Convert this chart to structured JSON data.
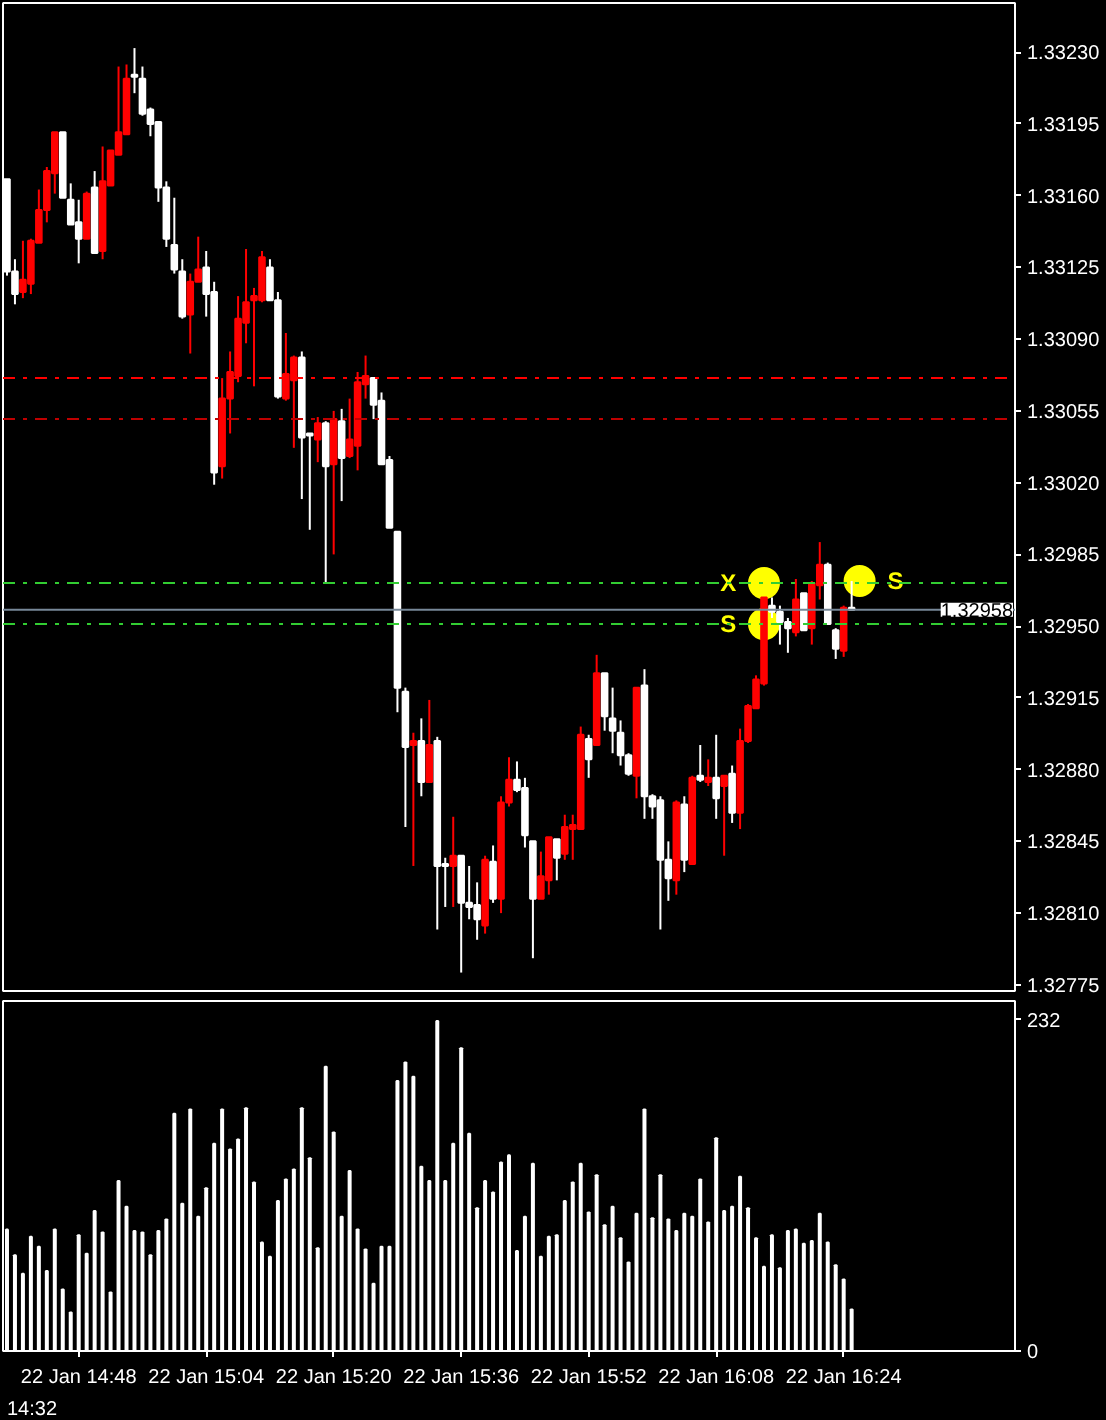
{
  "chart_data": [
    {
      "type": "candlestick",
      "tick_labels": "y",
      "grid": false,
      "categories": [
        null,
        null,
        null,
        null,
        null,
        null,
        null,
        null,
        null,
        null,
        null,
        null,
        null,
        null,
        null,
        null,
        null,
        null,
        null,
        null,
        null,
        null,
        null,
        null,
        null,
        null,
        null,
        null,
        null,
        null,
        null,
        null,
        null,
        null,
        null,
        null,
        null,
        null,
        null,
        null,
        null,
        null,
        null,
        null,
        null,
        null,
        null,
        null,
        null,
        null,
        null,
        null,
        null,
        null,
        null,
        null,
        null,
        null,
        null,
        null,
        null,
        null,
        null,
        null,
        null,
        null,
        null,
        null,
        null,
        null,
        null,
        null,
        null,
        null,
        null,
        null,
        null,
        null,
        null,
        null,
        null,
        null,
        null,
        null,
        null,
        null,
        null,
        null,
        null,
        null,
        null,
        null,
        null,
        null,
        null,
        null,
        null,
        null,
        null,
        null,
        null,
        null,
        null,
        null,
        null,
        null,
        null,
        null,
        null,
        null,
        null,
        null,
        null,
        null,
        null,
        null,
        null,
        null,
        null,
        null,
        null,
        null,
        null,
        null,
        null,
        null,
        null
      ],
      "colors": [
        "#ffffff",
        "#ffffff",
        "#ff0000",
        "#ff0000",
        "#ff0000",
        "#ff0000",
        "#ff0000",
        "#ffffff",
        "#ffffff",
        "#ffffff",
        "#ff0000",
        "#ffffff",
        "#ff0000",
        "#ff0000",
        "#ff0000",
        "#ff0000",
        "#ffffff",
        "#ffffff",
        "#ffffff",
        "#ffffff",
        "#ffffff",
        "#ffffff",
        "#ffffff",
        "#ff0000",
        "#ff0000",
        "#ffffff",
        "#ffffff",
        "#ff0000",
        "#ff0000",
        "#ff0000",
        "#ff0000",
        "#ff0000",
        "#ff0000",
        "#ffffff",
        "#ffffff",
        "#ff0000",
        "#ff0000",
        "#ffffff",
        "#ffffff",
        "#ff0000",
        "#ffffff",
        "#ff0000",
        "#ffffff",
        "#ff0000",
        "#ff0000",
        "#ff0000",
        "#ffffff",
        "#ffffff",
        "#ffffff",
        "#ffffff",
        "#ffffff",
        "#ff0000",
        "#ffffff",
        "#ff0000",
        "#ffffff",
        "#ffffff",
        "#ff0000",
        "#ffffff",
        "#ffffff",
        "#ffffff",
        "#ff0000",
        "#ffffff",
        "#ff0000",
        "#ff0000",
        "#ffffff",
        "#ffffff",
        "#ffffff",
        "#ff0000",
        "#ff0000",
        "#ffffff",
        "#ff0000",
        "#ff0000",
        "#ff0000",
        "#ffffff",
        "#ff0000",
        "#ffffff",
        "#ffffff",
        "#ffffff",
        "#ffffff",
        "#ff0000",
        "#ffffff",
        "#ffffff",
        "#ffffff",
        "#ffffff",
        "#ff0000",
        "#ffffff",
        "#ff0000",
        "#ffffff",
        "#ff0000",
        "#ffffff",
        "#ff0000",
        "#ffffff",
        "#ff0000",
        "#ff0000",
        "#ff0000",
        "#ff0000",
        "#ffffff",
        "#ffffff",
        "#ffffff",
        "#ff0000",
        "#ffffff",
        "#ff0000",
        "#ff0000",
        "#ffffff",
        "#ffffff",
        "#ff0000",
        "#ffffff",
        null,
        null,
        null,
        null,
        null,
        null,
        null,
        null,
        null,
        null,
        null,
        null,
        null,
        null,
        null,
        null,
        null,
        null,
        null,
        null
      ],
      "ohlc": [
        [
          1.33168,
          1.33168,
          1.33121,
          1.33123
        ],
        [
          1.33123,
          1.33129,
          1.33107,
          1.33112
        ],
        [
          1.33113,
          1.33138,
          1.3311,
          1.33119
        ],
        [
          1.33117,
          1.33139,
          1.33112,
          1.33138
        ],
        [
          1.33137,
          1.33163,
          1.33137,
          1.33153
        ],
        [
          1.33153,
          1.33174,
          1.33147,
          1.33172
        ],
        [
          1.33171,
          1.33191,
          1.33161,
          1.33191
        ],
        [
          1.33191,
          1.33191,
          1.33159,
          1.33159
        ],
        [
          1.33158,
          1.33166,
          1.33146,
          1.33146
        ],
        [
          1.33147,
          1.33158,
          1.33127,
          1.33139
        ],
        [
          1.33139,
          1.33162,
          1.33139,
          1.33161
        ],
        [
          1.33164,
          1.33172,
          1.33132,
          1.33132
        ],
        [
          1.33133,
          1.33184,
          1.33129,
          1.33167
        ],
        [
          1.33165,
          1.33182,
          1.33165,
          1.33182
        ],
        [
          1.3318,
          1.33223,
          1.3318,
          1.33191
        ],
        [
          1.3319,
          1.33224,
          1.3319,
          1.33217
        ],
        [
          1.33219,
          1.33232,
          1.3321,
          1.33218
        ],
        [
          1.33217,
          1.33223,
          1.33199,
          1.332
        ],
        [
          1.33202,
          1.33203,
          1.33189,
          1.33195
        ],
        [
          1.33196,
          1.33196,
          1.33157,
          1.33164
        ],
        [
          1.33164,
          1.33167,
          1.33135,
          1.33139
        ],
        [
          1.33136,
          1.33159,
          1.33122,
          1.33124
        ],
        [
          1.33123,
          1.33129,
          1.331,
          1.33101
        ],
        [
          1.33102,
          1.33122,
          1.33083,
          1.33118
        ],
        [
          1.33118,
          1.3314,
          1.33118,
          1.33124
        ],
        [
          1.33125,
          1.33133,
          1.33101,
          1.33112
        ],
        [
          1.33113,
          1.33118,
          1.33019,
          1.33025
        ],
        [
          1.33028,
          1.33071,
          1.33022,
          1.33061
        ],
        [
          1.33061,
          1.33084,
          1.33044,
          1.33074
        ],
        [
          1.33072,
          1.33111,
          1.33069,
          1.331
        ],
        [
          1.33098,
          1.33134,
          1.33088,
          1.33108
        ],
        [
          1.33109,
          1.33115,
          1.33067,
          1.33111
        ],
        [
          1.33109,
          1.33133,
          1.33108,
          1.3313
        ],
        [
          1.33125,
          1.33129,
          1.33109,
          1.33109
        ],
        [
          1.33109,
          1.33113,
          1.33061,
          1.33062
        ],
        [
          1.33061,
          1.33093,
          1.3306,
          1.33073
        ],
        [
          1.3307,
          1.33082,
          1.33037,
          1.33081
        ],
        [
          1.33081,
          1.33084,
          1.33012,
          1.33042
        ],
        [
          1.33044,
          1.33044,
          1.32997,
          1.33043
        ],
        [
          1.33041,
          1.33052,
          1.3303,
          1.33049
        ],
        [
          1.33049,
          1.3305,
          1.32971,
          1.33028
        ],
        [
          1.33029,
          1.33055,
          1.32985,
          1.33051
        ],
        [
          1.3305,
          1.33056,
          1.33011,
          1.33032
        ],
        [
          1.33033,
          1.33061,
          1.33032,
          1.33041
        ],
        [
          1.33038,
          1.33074,
          1.33026,
          1.33069
        ],
        [
          1.33068,
          1.33082,
          1.33061,
          1.33072
        ],
        [
          1.33071,
          1.33071,
          1.33051,
          1.33058
        ],
        [
          1.3306,
          1.33064,
          1.33029,
          1.33029
        ],
        [
          1.33031,
          1.33033,
          1.32998,
          1.32998
        ],
        [
          1.32996,
          1.32996,
          1.32908,
          1.3292
        ],
        [
          1.32918,
          1.3292,
          1.32852,
          1.32891
        ],
        [
          1.32892,
          1.32898,
          1.32833,
          1.32894
        ],
        [
          1.32894,
          1.32905,
          1.32867,
          1.32874
        ],
        [
          1.32874,
          1.32914,
          1.32874,
          1.32892
        ],
        [
          1.32894,
          1.32896,
          1.32802,
          1.32833
        ],
        [
          1.32834,
          1.32837,
          1.32813,
          1.32833
        ],
        [
          1.32833,
          1.32857,
          1.32813,
          1.32838
        ],
        [
          1.32838,
          1.32838,
          1.32781,
          1.32815
        ],
        [
          1.32815,
          1.32833,
          1.32807,
          1.32813
        ],
        [
          1.32814,
          1.32825,
          1.32797,
          1.32807
        ],
        [
          1.32804,
          1.32838,
          1.328,
          1.32836
        ],
        [
          1.32835,
          1.32843,
          1.32815,
          1.32817
        ],
        [
          1.32817,
          1.32867,
          1.3281,
          1.32864
        ],
        [
          1.32864,
          1.32886,
          1.32862,
          1.32875
        ],
        [
          1.32875,
          1.32884,
          1.32869,
          1.3287
        ],
        [
          1.32871,
          1.32876,
          1.32842,
          1.32848
        ],
        [
          1.32845,
          1.32845,
          1.32788,
          1.32817
        ],
        [
          1.32817,
          1.3284,
          1.32817,
          1.32828
        ],
        [
          1.32826,
          1.32847,
          1.32819,
          1.32847
        ],
        [
          1.32846,
          1.32846,
          1.32826,
          1.32837
        ],
        [
          1.32839,
          1.32858,
          1.32836,
          1.32852
        ],
        [
          1.32851,
          1.32858,
          1.32836,
          1.32853
        ],
        [
          1.32851,
          1.32901,
          1.32851,
          1.32897
        ],
        [
          1.32895,
          1.32897,
          1.32876,
          1.32885
        ],
        [
          1.32892,
          1.32936,
          1.32892,
          1.32927
        ],
        [
          1.32927,
          1.32927,
          1.32899,
          1.32906
        ],
        [
          1.32905,
          1.3292,
          1.32888,
          1.32899
        ],
        [
          1.32898,
          1.32904,
          1.32882,
          1.32887
        ],
        [
          1.32887,
          1.32888,
          1.32877,
          1.32878
        ],
        [
          1.32877,
          1.3292,
          1.32866,
          1.3292
        ],
        [
          1.32921,
          1.32929,
          1.32856,
          1.32867
        ],
        [
          1.32867,
          1.32868,
          1.32856,
          1.32862
        ],
        [
          1.32865,
          1.32867,
          1.32802,
          1.32836
        ],
        [
          1.32836,
          1.32845,
          1.32816,
          1.32827
        ],
        [
          1.32826,
          1.32865,
          1.32819,
          1.32864
        ],
        [
          1.32863,
          1.32867,
          1.3283,
          1.32836
        ],
        [
          1.32834,
          1.32877,
          1.32834,
          1.32876
        ],
        [
          1.32877,
          1.32892,
          1.32874,
          1.32875
        ],
        [
          1.32874,
          1.32885,
          1.32872,
          1.32876
        ],
        [
          1.32876,
          1.32897,
          1.32856,
          1.32866
        ],
        [
          1.32872,
          1.32877,
          1.32838,
          1.32877
        ],
        [
          1.32878,
          1.32882,
          1.32854,
          1.32859
        ],
        [
          1.32859,
          1.329,
          1.32851,
          1.32894
        ],
        [
          1.32894,
          1.32912,
          1.32893,
          1.32911
        ],
        [
          1.3291,
          1.32926,
          1.3291,
          1.32924
        ],
        [
          1.32922,
          1.32964,
          1.32921,
          1.32964
        ],
        [
          1.3296,
          1.32964,
          1.32954,
          1.32957
        ],
        [
          1.32957,
          1.3296,
          1.32941,
          1.32952
        ],
        [
          1.32952,
          1.32954,
          1.32937,
          1.32949
        ],
        [
          1.32947,
          1.32973,
          1.32945,
          1.32963
        ],
        [
          1.32966,
          1.32966,
          1.32948,
          1.32948
        ],
        [
          1.32949,
          1.32972,
          1.32941,
          1.32971
        ],
        [
          1.3297,
          1.32991,
          1.32963,
          1.3298
        ],
        [
          1.3298,
          1.32981,
          1.32951,
          1.32951
        ],
        [
          1.32948,
          1.32949,
          1.32934,
          1.32939
        ],
        [
          1.32938,
          1.3296,
          1.32935,
          1.32959
        ],
        [
          1.32959,
          1.32972,
          1.32958,
          1.32958
        ],
        null,
        null,
        null,
        null,
        null,
        null,
        null,
        null,
        null,
        null,
        null,
        null,
        null,
        null,
        null,
        null,
        null,
        null,
        null,
        null
      ],
      "series": [
        {
          "name": "X",
          "type": "scatter",
          "color": "#ffff00",
          "values": [
            null,
            null,
            null,
            null,
            null,
            null,
            null,
            null,
            null,
            null,
            null,
            null,
            null,
            null,
            null,
            null,
            null,
            null,
            null,
            null,
            null,
            null,
            null,
            null,
            null,
            null,
            null,
            null,
            null,
            null,
            null,
            null,
            null,
            null,
            null,
            null,
            null,
            null,
            null,
            null,
            null,
            null,
            null,
            null,
            null,
            null,
            null,
            null,
            null,
            null,
            null,
            null,
            null,
            null,
            null,
            null,
            null,
            null,
            null,
            null,
            null,
            null,
            null,
            null,
            null,
            null,
            null,
            null,
            null,
            null,
            null,
            null,
            null,
            null,
            null,
            null,
            null,
            null,
            null,
            null,
            null,
            null,
            null,
            null,
            null,
            null,
            null,
            null,
            null,
            null,
            null,
            null,
            null,
            null,
            null,
            1.32971,
            null,
            null,
            null,
            null,
            null,
            null,
            null,
            null,
            null,
            null,
            null,
            null,
            null,
            null,
            null,
            null,
            null,
            null,
            null,
            null,
            null,
            null,
            null,
            null,
            null,
            null,
            null,
            null,
            null,
            null,
            null
          ]
        },
        {
          "name": "S",
          "type": "scatter",
          "color": "#ffff00",
          "values": [
            null,
            null,
            null,
            null,
            null,
            null,
            null,
            null,
            null,
            null,
            null,
            null,
            null,
            null,
            null,
            null,
            null,
            null,
            null,
            null,
            null,
            null,
            null,
            null,
            null,
            null,
            null,
            null,
            null,
            null,
            null,
            null,
            null,
            null,
            null,
            null,
            null,
            null,
            null,
            null,
            null,
            null,
            null,
            null,
            null,
            null,
            null,
            null,
            null,
            null,
            null,
            null,
            null,
            null,
            null,
            null,
            null,
            null,
            null,
            null,
            null,
            null,
            null,
            null,
            null,
            null,
            null,
            null,
            null,
            null,
            null,
            null,
            null,
            null,
            null,
            null,
            null,
            null,
            null,
            null,
            null,
            null,
            null,
            null,
            null,
            null,
            null,
            null,
            null,
            null,
            null,
            null,
            null,
            null,
            null,
            1.32951,
            null,
            null,
            null,
            null,
            null,
            null,
            null,
            null,
            null,
            null,
            null,
            1.32972,
            null,
            null,
            null,
            null,
            null,
            null,
            null,
            null,
            null,
            null,
            null,
            null,
            null,
            null,
            null,
            null,
            null,
            null,
            null
          ]
        }
      ],
      "marker": "circle",
      "ylim": [
        1.32772,
        1.33254
      ],
      "yticks": [
        {
          "value": 1.3323,
          "label": "1.33230"
        },
        {
          "value": 1.33195,
          "label": "1.33195"
        },
        {
          "value": 1.3316,
          "label": "1.33160"
        },
        {
          "value": 1.33125,
          "label": "1.33125"
        },
        {
          "value": 1.3309,
          "label": "1.33090"
        },
        {
          "value": 1.33055,
          "label": "1.33055"
        },
        {
          "value": 1.3302,
          "label": "1.33020"
        },
        {
          "value": 1.32985,
          "label": "1.32985"
        },
        {
          "value": 1.3295,
          "label": "1.32950"
        },
        {
          "value": 1.32915,
          "label": "1.32915"
        },
        {
          "value": 1.3288,
          "label": "1.32880"
        },
        {
          "value": 1.32845,
          "label": "1.32845"
        },
        {
          "value": 1.3281,
          "label": "1.32810"
        },
        {
          "value": 1.32775,
          "label": "1.32775"
        }
      ],
      "ref_lines": [
        {
          "axis": "y",
          "value": 1.33071,
          "color": "#ff0000",
          "line_style": "dashdot"
        },
        {
          "axis": "y",
          "value": 1.33051,
          "color": "#c00000",
          "line_style": "dashdot"
        },
        {
          "axis": "y",
          "value": 1.32971,
          "color": "#32cd32",
          "line_style": "dashdot"
        },
        {
          "axis": "y",
          "value": 1.32951,
          "color": "#32cd32",
          "line_style": "dashdot"
        },
        {
          "axis": "y",
          "value": 1.32958,
          "color": "#778899",
          "line_style": "solid",
          "label": "1.32958"
        }
      ]
    },
    {
      "type": "bar",
      "grid": false,
      "color": "#ffffff",
      "categories": [
        null,
        null,
        null,
        null,
        null,
        null,
        null,
        null,
        null,
        "22 Jan 14:48",
        null,
        null,
        null,
        null,
        null,
        null,
        null,
        null,
        null,
        null,
        null,
        null,
        null,
        null,
        null,
        "22 Jan 15:04",
        null,
        null,
        null,
        null,
        null,
        null,
        null,
        null,
        null,
        null,
        null,
        null,
        null,
        null,
        null,
        "22 Jan 15:20",
        null,
        null,
        null,
        null,
        null,
        null,
        null,
        null,
        null,
        null,
        null,
        null,
        null,
        null,
        null,
        "22 Jan 15:36",
        null,
        null,
        null,
        null,
        null,
        null,
        null,
        null,
        null,
        null,
        null,
        null,
        null,
        null,
        null,
        "22 Jan 15:52",
        null,
        null,
        null,
        null,
        null,
        null,
        null,
        null,
        null,
        null,
        null,
        null,
        null,
        null,
        null,
        "22 Jan 16:08",
        null,
        null,
        null,
        null,
        null,
        null,
        null,
        null,
        null,
        null,
        null,
        null,
        null,
        null,
        null,
        "22 Jan 16:24",
        null,
        null,
        null,
        null,
        null,
        null,
        null,
        null,
        null,
        null,
        null,
        null,
        null,
        null,
        null,
        null,
        null,
        null,
        null,
        null,
        null
      ],
      "values": [
        85,
        67,
        54,
        80,
        73,
        56,
        85,
        43,
        27,
        81,
        68,
        98,
        83,
        41,
        119,
        101,
        84,
        83,
        67,
        84,
        92,
        166,
        103,
        169,
        94,
        114,
        145,
        169,
        141,
        148,
        170,
        118,
        76,
        66,
        105,
        120,
        127,
        170,
        135,
        72,
        199,
        153,
        94,
        126,
        85,
        71,
        47,
        73,
        73,
        189,
        202,
        192,
        129,
        119,
        231,
        119,
        145,
        212,
        152,
        100,
        119,
        111,
        132,
        137,
        70,
        94,
        131,
        66,
        80,
        81,
        105,
        118,
        131,
        97,
        123,
        88,
        101,
        79,
        62,
        96,
        169,
        93,
        123,
        92,
        84,
        96,
        94,
        120,
        90,
        149,
        98,
        101,
        122,
        100,
        79,
        59,
        81,
        58,
        84,
        85,
        75,
        77,
        96,
        76,
        60,
        50,
        29,
        null,
        null,
        null,
        null,
        null,
        null,
        null,
        null,
        null,
        null,
        null,
        null,
        null,
        null,
        null,
        null,
        null,
        null,
        null,
        null
      ],
      "ylim": [
        0,
        245
      ],
      "yticks": [
        0,
        232
      ],
      "annotations": [
        "14:32"
      ]
    }
  ]
}
